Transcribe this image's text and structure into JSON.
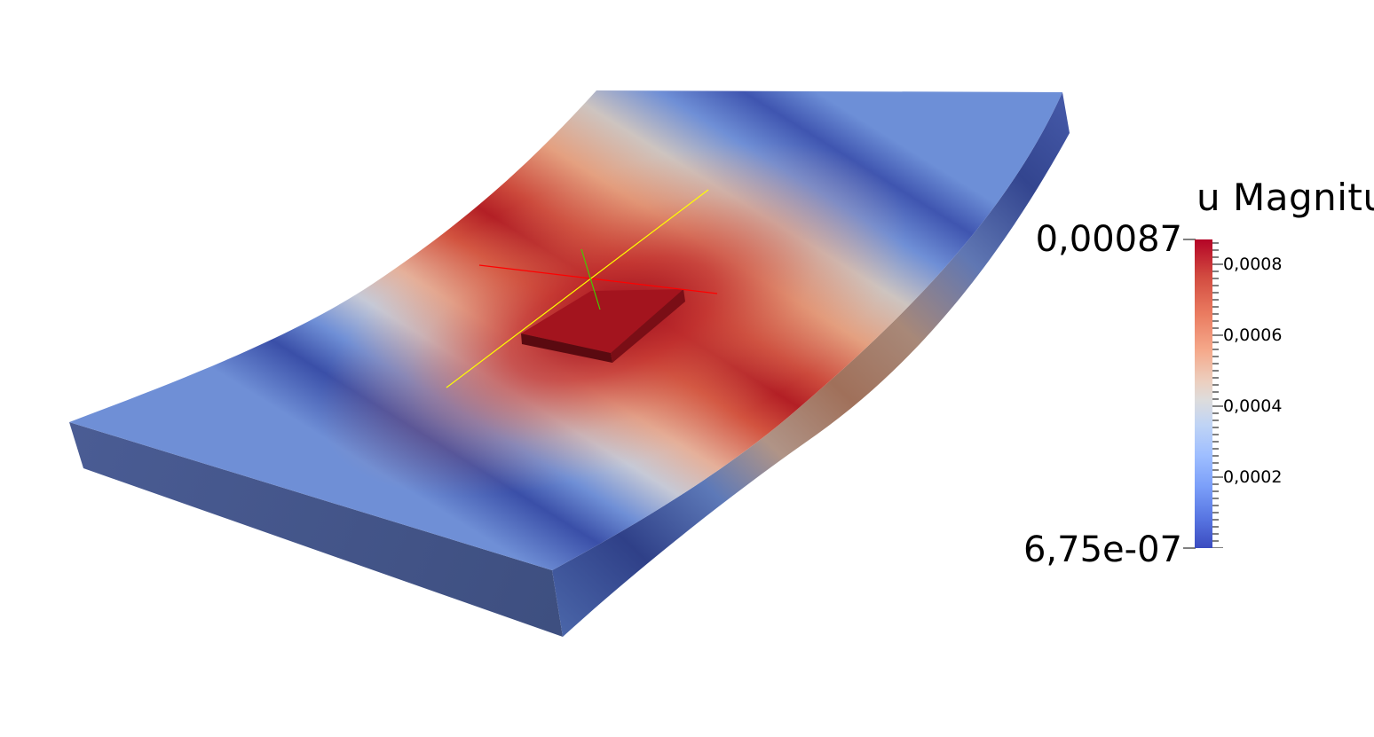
{
  "legend": {
    "title": "u Magnitu",
    "max_label": "0,00087",
    "min_label": "6,75e-07",
    "ticks": [
      "0,0008",
      "0,0006",
      "0,0004",
      "0,0002"
    ],
    "colors": {
      "high": "#b40426",
      "mid": "#dddcdc",
      "low": "#3b4cc0"
    }
  },
  "axes_colors": {
    "x": "#ff0000",
    "y": "#ffff00",
    "z": "#44cc00"
  }
}
